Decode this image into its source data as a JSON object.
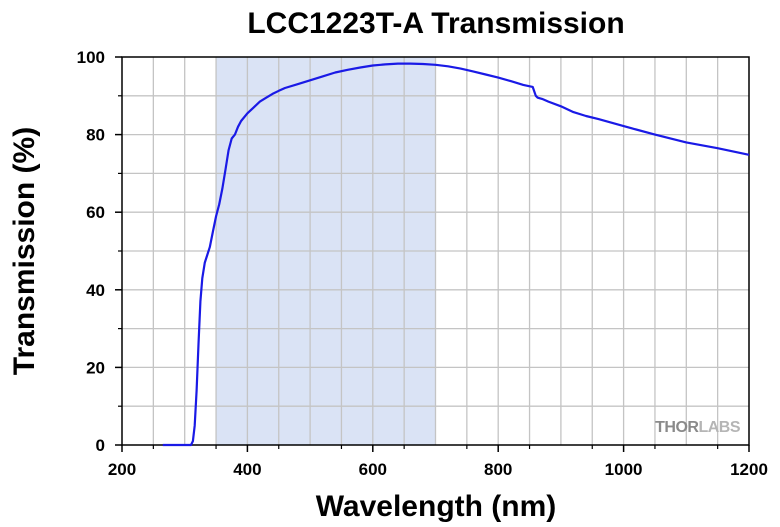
{
  "chart_data": {
    "type": "line",
    "title": "LCC1223T-A Transmission",
    "xlabel": "Wavelength (nm)",
    "ylabel": "Transmission (%)",
    "xlim": [
      200,
      1200
    ],
    "ylim": [
      0,
      100
    ],
    "x_ticks": [
      "200",
      "400",
      "600",
      "800",
      "1000",
      "1200"
    ],
    "y_ticks": [
      "0",
      "20",
      "40",
      "60",
      "80",
      "100"
    ],
    "grid": true,
    "highlight_band": {
      "from": 350,
      "to": 700,
      "color": "#dae3f5"
    },
    "series": [
      {
        "color": "#1a1ae6",
        "x": [
          265,
          300,
          310,
          313,
          316,
          319,
          322,
          325,
          328,
          332,
          336,
          340,
          345,
          350,
          355,
          360,
          365,
          370,
          375,
          380,
          385,
          390,
          400,
          410,
          420,
          430,
          440,
          450,
          460,
          480,
          500,
          520,
          540,
          560,
          580,
          600,
          620,
          640,
          660,
          680,
          700,
          720,
          740,
          760,
          780,
          800,
          820,
          840,
          855,
          860,
          863,
          870,
          880,
          900,
          920,
          940,
          960,
          1000,
          1050,
          1100,
          1150,
          1200
        ],
        "y": [
          0,
          0,
          0,
          1,
          5,
          14,
          26,
          37,
          43,
          47,
          49,
          51,
          55,
          59,
          62,
          66,
          71,
          76,
          79,
          80,
          82,
          83.5,
          85.5,
          87,
          88.5,
          89.5,
          90.5,
          91.3,
          92,
          93,
          94,
          95,
          96,
          96.7,
          97.3,
          97.8,
          98.1,
          98.3,
          98.3,
          98.2,
          98,
          97.6,
          97,
          96.3,
          95.5,
          94.7,
          93.8,
          92.8,
          92.3,
          90,
          89.5,
          89.2,
          88.5,
          87.3,
          85.8,
          84.8,
          84,
          82.2,
          80,
          78,
          76.5,
          74.8
        ]
      }
    ]
  },
  "watermark": {
    "part1": "THOR",
    "part2": "LABS"
  }
}
